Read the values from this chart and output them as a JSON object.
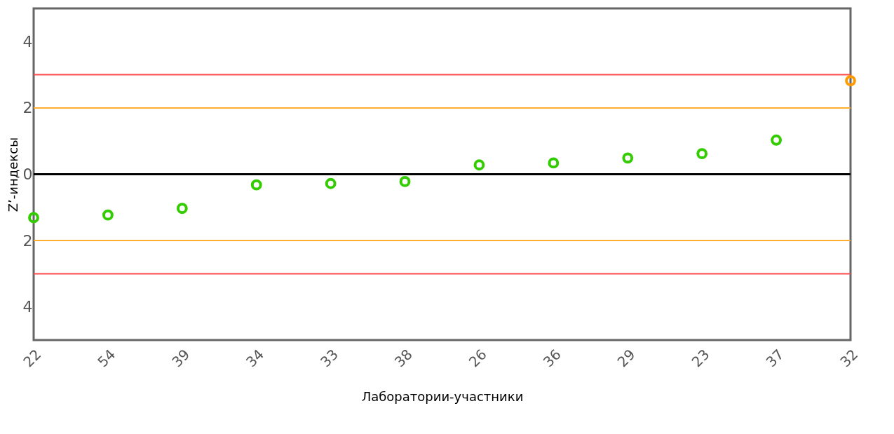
{
  "chart_data": {
    "type": "scatter",
    "xlabel": "Лаборатории-участники",
    "ylabel": "Z’-индексы",
    "categories": [
      "22",
      "54",
      "39",
      "34",
      "33",
      "38",
      "26",
      "36",
      "29",
      "23",
      "37",
      "32"
    ],
    "series": [
      {
        "values": [
          -1.31,
          -1.23,
          -1.03,
          -0.32,
          -0.28,
          -0.22,
          0.28,
          0.34,
          0.49,
          0.62,
          1.03,
          2.82
        ],
        "colors": [
          "#33cc00",
          "#33cc00",
          "#33cc00",
          "#33cc00",
          "#33cc00",
          "#33cc00",
          "#33cc00",
          "#33cc00",
          "#33cc00",
          "#33cc00",
          "#33cc00",
          "#ff9900"
        ]
      }
    ],
    "ylim": [
      -5,
      5
    ],
    "yticks": [
      {
        "value": -4,
        "label": "4"
      },
      {
        "value": -2,
        "label": "2"
      },
      0,
      2,
      4
    ],
    "ref_lines": [
      {
        "axis": "y",
        "value": 3,
        "color": "#ff4b4b"
      },
      {
        "axis": "y",
        "value": 2,
        "color": "#ffae2e"
      },
      {
        "axis": "y",
        "value": 0,
        "color": "#000000"
      },
      {
        "axis": "y",
        "value": -2,
        "color": "#ffae2e"
      },
      {
        "axis": "y",
        "value": -3,
        "color": "#ff4b4b"
      }
    ],
    "marker": "circle",
    "grid": false
  }
}
